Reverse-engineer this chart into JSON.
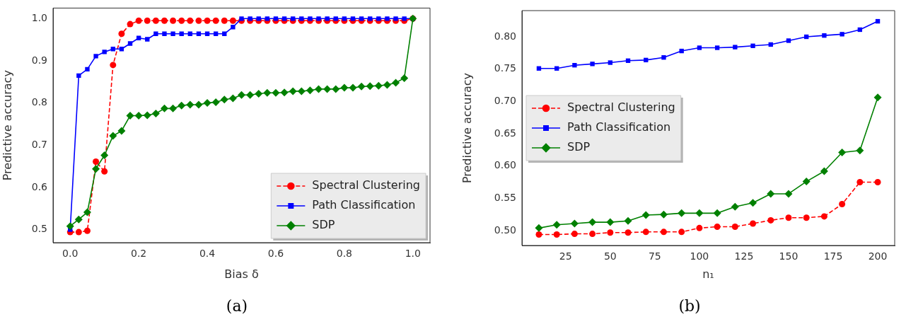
{
  "chart_data": [
    {
      "type": "line",
      "xlabel": "Bias δ",
      "ylabel": "Predictive accuracy",
      "annotations": [
        "(a)"
      ],
      "legend": "bottom right",
      "grid": false,
      "x": [
        0,
        0.025,
        0.05,
        0.075,
        0.1,
        0.125,
        0.15,
        0.175,
        0.2,
        0.225,
        0.25,
        0.275,
        0.3,
        0.325,
        0.35,
        0.375,
        0.4,
        0.425,
        0.45,
        0.475,
        0.5,
        0.525,
        0.55,
        0.575,
        0.6,
        0.625,
        0.65,
        0.675,
        0.7,
        0.725,
        0.75,
        0.775,
        0.8,
        0.825,
        0.85,
        0.875,
        0.9,
        0.925,
        0.95,
        0.975,
        1
      ],
      "xlim": [
        -0.05,
        1.05
      ],
      "xticks": [
        {
          "value": 0,
          "label": "0.0"
        },
        0.2,
        0.4,
        0.6,
        0.8,
        {
          "value": 1,
          "label": "1.0"
        }
      ],
      "ylim": [
        0.469,
        1.025
      ],
      "yticks": [
        0.5,
        0.6,
        0.7,
        0.8,
        0.9,
        {
          "value": 1,
          "label": "1.0"
        }
      ],
      "series": [
        {
          "name": "Spectral Clustering",
          "color": "#ff0000",
          "marker": "circle",
          "line_style": "dashed",
          "values": [
            0.494,
            0.494,
            0.497,
            0.661,
            0.638,
            0.89,
            0.964,
            0.987,
            0.995,
            0.995,
            0.995,
            0.995,
            0.995,
            0.995,
            0.995,
            0.995,
            0.995,
            0.995,
            0.995,
            0.995,
            0.995,
            0.995,
            0.995,
            0.995,
            0.995,
            0.995,
            0.995,
            0.995,
            0.995,
            0.995,
            0.995,
            0.995,
            0.995,
            0.995,
            0.995,
            0.995,
            0.995,
            0.995,
            0.995,
            0.995,
            1
          ]
        },
        {
          "name": "Path Classification",
          "color": "#0000ff",
          "marker": "square",
          "line_style": "solid",
          "values": [
            0.5,
            0.865,
            0.88,
            0.911,
            0.921,
            0.928,
            0.928,
            0.941,
            0.954,
            0.951,
            0.964,
            0.964,
            0.964,
            0.964,
            0.964,
            0.964,
            0.964,
            0.964,
            0.964,
            0.98,
            1,
            1,
            1,
            1,
            1,
            1,
            1,
            1,
            1,
            1,
            1,
            1,
            1,
            1,
            1,
            1,
            1,
            1,
            1,
            1,
            1
          ]
        },
        {
          "name": "SDP",
          "color": "#008000",
          "marker": "diamond",
          "line_style": "solid",
          "values": [
            0.508,
            0.524,
            0.541,
            0.644,
            0.676,
            0.722,
            0.734,
            0.77,
            0.77,
            0.771,
            0.775,
            0.787,
            0.787,
            0.794,
            0.796,
            0.796,
            0.8,
            0.802,
            0.808,
            0.811,
            0.819,
            0.819,
            0.822,
            0.824,
            0.824,
            0.825,
            0.828,
            0.828,
            0.83,
            0.833,
            0.833,
            0.833,
            0.836,
            0.836,
            0.839,
            0.84,
            0.841,
            0.843,
            0.848,
            0.859,
            1
          ]
        }
      ]
    },
    {
      "type": "line",
      "xlabel": "n₁",
      "ylabel": "Predictive accuracy",
      "annotations": [
        "(b)"
      ],
      "legend": "left",
      "grid": false,
      "x": [
        10,
        20,
        30,
        40,
        50,
        60,
        70,
        80,
        90,
        100,
        110,
        120,
        130,
        140,
        150,
        160,
        170,
        180,
        190,
        200
      ],
      "xlim": [
        0.5,
        209.5
      ],
      "xticks": [
        25,
        50,
        75,
        100,
        125,
        150,
        175,
        200
      ],
      "ylim": [
        0.477,
        0.8405
      ],
      "yticks": [
        {
          "value": 0.5,
          "label": "0.50"
        },
        0.55,
        {
          "value": 0.6,
          "label": "0.60"
        },
        0.65,
        {
          "value": 0.7,
          "label": "0.70"
        },
        0.75,
        {
          "value": 0.8,
          "label": "0.80"
        }
      ],
      "series": [
        {
          "name": "Spectral Clustering",
          "color": "#ff0000",
          "marker": "circle",
          "line_style": "dashed",
          "values": [
            0.494,
            0.494,
            0.495,
            0.495,
            0.497,
            0.497,
            0.498,
            0.498,
            0.498,
            0.504,
            0.506,
            0.506,
            0.511,
            0.516,
            0.52,
            0.52,
            0.522,
            0.541,
            0.575,
            0.575
          ]
        },
        {
          "name": "Path Classification",
          "color": "#0000ff",
          "marker": "square",
          "line_style": "solid",
          "values": [
            0.751,
            0.751,
            0.756,
            0.758,
            0.76,
            0.763,
            0.764,
            0.768,
            0.778,
            0.783,
            0.783,
            0.784,
            0.786,
            0.788,
            0.794,
            0.8,
            0.802,
            0.804,
            0.811,
            0.824
          ]
        },
        {
          "name": "SDP",
          "color": "#008000",
          "marker": "diamond",
          "line_style": "solid",
          "values": [
            0.504,
            0.509,
            0.511,
            0.513,
            0.513,
            0.515,
            0.524,
            0.525,
            0.527,
            0.527,
            0.527,
            0.537,
            0.543,
            0.557,
            0.557,
            0.576,
            0.592,
            0.621,
            0.624,
            0.706
          ]
        }
      ]
    }
  ]
}
